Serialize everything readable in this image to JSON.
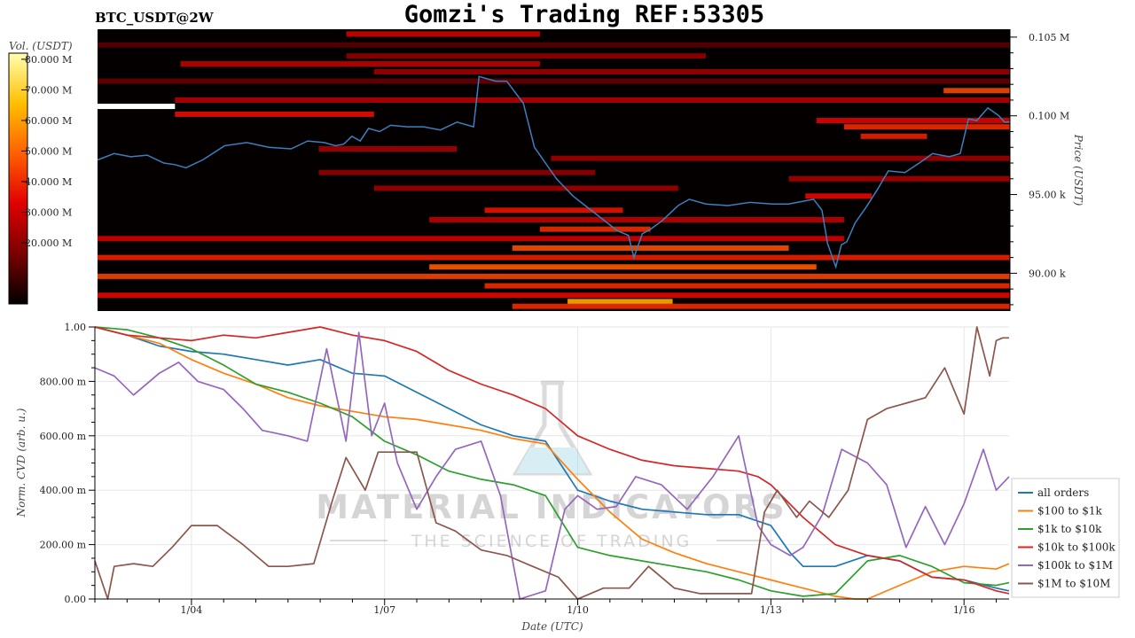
{
  "header": {
    "pair_label": "BTC_USDT@2W",
    "title": "Gomzi's Trading REF:53305"
  },
  "watermark": {
    "line1": "MATERIAL INDICATORS",
    "line2": "THE SCIENCE OF TRADING",
    "icon": "flask-icon"
  },
  "chart_data": [
    {
      "type": "heatmap",
      "colorbar": {
        "label": "Vol. (USDT)",
        "ticks": [
          "80.000 M",
          "70.000 M",
          "60.000 M",
          "50.000 M",
          "40.000 M",
          "30.000 M",
          "20.000 M"
        ],
        "tick_values": [
          80,
          70,
          60,
          50,
          40,
          30,
          20
        ],
        "range": [
          0,
          82
        ],
        "colors": [
          "#000000",
          "#7a0000",
          "#e00000",
          "#ff6000",
          "#ffc000",
          "#ffffb0"
        ]
      },
      "ylabel": "Price (USDT)",
      "yticks": [
        "0.105 M",
        "0.100 M",
        "95.00 k",
        "90.00 k"
      ],
      "ytick_values": [
        105000,
        100000,
        95000,
        90000
      ],
      "ylim": [
        87600,
        105500
      ],
      "x_range": [
        "01/02 12:00",
        "01/16 12:00"
      ],
      "line_color": "#3a7fc0",
      "price_series": {
        "t": [
          0,
          0.3,
          0.6,
          0.9,
          1.2,
          1.4,
          1.6,
          1.9,
          2.3,
          2.7,
          3.1,
          3.5,
          3.8,
          4.1,
          4.3,
          4.45,
          4.6,
          4.75,
          4.9,
          5.1,
          5.3,
          5.6,
          5.9,
          6.2,
          6.5,
          6.8,
          6.9,
          7.2,
          7.4,
          7.55,
          7.7,
          7.9,
          8.0,
          8.3,
          8.6,
          9.0,
          9.4,
          9.6,
          9.7,
          9.85,
          10.0,
          10.2,
          10.5,
          10.7,
          11.0,
          11.4,
          11.8,
          12.2,
          12.5,
          12.8,
          12.95,
          13.1,
          13.2,
          13.35,
          13.45,
          13.55,
          13.7,
          13.9,
          14.1,
          14.3,
          14.6,
          14.9,
          15.1,
          15.4,
          15.6,
          15.75,
          15.9,
          16.1,
          16.3,
          16.4,
          16.5
        ],
        "price": [
          97200,
          97600,
          97400,
          97500,
          97000,
          96900,
          96700,
          97200,
          98100,
          98300,
          98000,
          97900,
          98400,
          98300,
          98100,
          98200,
          98700,
          98400,
          99200,
          99000,
          99400,
          99300,
          99300,
          99100,
          99600,
          99300,
          102500,
          102200,
          102200,
          101500,
          100800,
          98000,
          97500,
          96000,
          94900,
          93800,
          92700,
          92400,
          91000,
          92500,
          92800,
          93300,
          94300,
          94700,
          94400,
          94300,
          94500,
          94400,
          94400,
          94600,
          94700,
          94000,
          91900,
          90400,
          91800,
          92000,
          93200,
          94200,
          95300,
          96500,
          96400,
          97100,
          97600,
          97400,
          97600,
          99800,
          99700,
          100500,
          100000,
          99600,
          99600
        ]
      },
      "heat_bands": [
        {
          "price": 104500,
          "t_start": 0,
          "t_end": 16.5,
          "volume": 12
        },
        {
          "price": 105200,
          "t_start": 4.5,
          "t_end": 8.0,
          "volume": 30
        },
        {
          "price": 103800,
          "t_start": 4.5,
          "t_end": 11.0,
          "volume": 20
        },
        {
          "price": 103300,
          "t_start": 1.5,
          "t_end": 8.0,
          "volume": 28
        },
        {
          "price": 102800,
          "t_start": 5.0,
          "t_end": 16.5,
          "volume": 22
        },
        {
          "price": 102200,
          "t_start": 0,
          "t_end": 16.5,
          "volume": 14
        },
        {
          "price": 101600,
          "t_start": 15.3,
          "t_end": 16.5,
          "volume": 45
        },
        {
          "price": 101000,
          "t_start": 1.4,
          "t_end": 16.5,
          "volume": 26
        },
        {
          "price": 100600,
          "t_start": 0,
          "t_end": 1.4,
          "volume": 82
        },
        {
          "price": 100100,
          "t_start": 1.4,
          "t_end": 5.0,
          "volume": 35
        },
        {
          "price": 99700,
          "t_start": 13.0,
          "t_end": 16.5,
          "volume": 33
        },
        {
          "price": 99300,
          "t_start": 13.5,
          "t_end": 16.5,
          "volume": 40
        },
        {
          "price": 98700,
          "t_start": 13.8,
          "t_end": 15.0,
          "volume": 38
        },
        {
          "price": 97900,
          "t_start": 4.0,
          "t_end": 6.5,
          "volume": 24
        },
        {
          "price": 97300,
          "t_start": 8.2,
          "t_end": 16.5,
          "volume": 22
        },
        {
          "price": 96400,
          "t_start": 4.0,
          "t_end": 9.0,
          "volume": 20
        },
        {
          "price": 96000,
          "t_start": 12.5,
          "t_end": 16.5,
          "volume": 24
        },
        {
          "price": 95400,
          "t_start": 5.0,
          "t_end": 10.5,
          "volume": 22
        },
        {
          "price": 94900,
          "t_start": 12.8,
          "t_end": 14.0,
          "volume": 34
        },
        {
          "price": 94000,
          "t_start": 7.0,
          "t_end": 9.5,
          "volume": 36
        },
        {
          "price": 93400,
          "t_start": 6.0,
          "t_end": 13.5,
          "volume": 28
        },
        {
          "price": 92800,
          "t_start": 8.0,
          "t_end": 10.0,
          "volume": 40
        },
        {
          "price": 92200,
          "t_start": 0,
          "t_end": 13.5,
          "volume": 30
        },
        {
          "price": 91600,
          "t_start": 7.5,
          "t_end": 12.5,
          "volume": 46
        },
        {
          "price": 91000,
          "t_start": 0,
          "t_end": 16.5,
          "volume": 38
        },
        {
          "price": 90400,
          "t_start": 6.0,
          "t_end": 13.0,
          "volume": 48
        },
        {
          "price": 89800,
          "t_start": 0,
          "t_end": 16.5,
          "volume": 44
        },
        {
          "price": 89200,
          "t_start": 7.0,
          "t_end": 16.5,
          "volume": 40
        },
        {
          "price": 88600,
          "t_start": 0,
          "t_end": 16.5,
          "volume": 34
        },
        {
          "price": 88200,
          "t_start": 8.5,
          "t_end": 10.4,
          "volume": 62
        },
        {
          "price": 87900,
          "t_start": 7.5,
          "t_end": 16.5,
          "volume": 40
        }
      ]
    },
    {
      "type": "line",
      "xlabel": "Date (UTC)",
      "ylabel": "Norm. CVD (arb. u.)",
      "xticks": [
        "1/04",
        "1/07",
        "1/10",
        "1/13",
        "1/16"
      ],
      "xtick_values": [
        1.5,
        4.5,
        7.5,
        10.5,
        13.5
      ],
      "xlim": [
        0,
        14.2
      ],
      "yticks": [
        "0.00",
        "200.00 m",
        "400.00 m",
        "600.00 m",
        "800.00 m",
        "1.00"
      ],
      "ytick_values": [
        0,
        0.2,
        0.4,
        0.6,
        0.8,
        1.0
      ],
      "ylim": [
        0,
        1.0
      ],
      "grid": true,
      "legend_position": "right",
      "series": [
        {
          "name": "all orders",
          "color": "#1f77b4",
          "x": [
            0,
            0.5,
            1.0,
            1.5,
            2.0,
            2.5,
            3.0,
            3.5,
            4.0,
            4.5,
            5.0,
            5.5,
            6.0,
            6.5,
            7.0,
            7.5,
            8.0,
            8.5,
            9.0,
            9.5,
            10.0,
            10.5,
            10.8,
            11.0,
            11.5,
            12.0,
            12.5,
            13.0,
            13.5,
            14.0,
            14.2
          ],
          "y": [
            1.0,
            0.97,
            0.93,
            0.91,
            0.9,
            0.88,
            0.86,
            0.88,
            0.83,
            0.82,
            0.76,
            0.7,
            0.64,
            0.6,
            0.58,
            0.4,
            0.36,
            0.33,
            0.32,
            0.31,
            0.31,
            0.27,
            0.17,
            0.12,
            0.12,
            0.16,
            0.14,
            0.08,
            0.07,
            0.04,
            0.03
          ]
        },
        {
          "name": "$100 to $1k",
          "color": "#ff7f0e",
          "x": [
            0,
            0.5,
            1.0,
            1.5,
            2.0,
            2.5,
            3.0,
            3.5,
            4.0,
            4.5,
            5.0,
            5.5,
            6.0,
            6.5,
            7.0,
            7.5,
            8.0,
            8.5,
            9.0,
            9.5,
            10.0,
            10.5,
            11.0,
            11.5,
            11.8,
            12.0,
            12.5,
            13.0,
            13.5,
            14.0,
            14.2
          ],
          "y": [
            1.0,
            0.97,
            0.94,
            0.88,
            0.83,
            0.79,
            0.74,
            0.71,
            0.69,
            0.67,
            0.66,
            0.64,
            0.62,
            0.59,
            0.57,
            0.44,
            0.32,
            0.22,
            0.17,
            0.13,
            0.1,
            0.07,
            0.04,
            0.01,
            0.0,
            0.0,
            0.05,
            0.1,
            0.12,
            0.11,
            0.13
          ]
        },
        {
          "name": "$1k to $10k",
          "color": "#2ca02c",
          "x": [
            0,
            0.5,
            1.0,
            1.5,
            2.0,
            2.5,
            3.0,
            3.5,
            4.0,
            4.5,
            5.0,
            5.5,
            6.0,
            6.5,
            7.0,
            7.5,
            8.0,
            8.5,
            9.0,
            9.5,
            10.0,
            10.5,
            11.0,
            11.5,
            12.0,
            12.5,
            13.0,
            13.5,
            14.0,
            14.2
          ],
          "y": [
            1.0,
            0.99,
            0.96,
            0.92,
            0.86,
            0.79,
            0.76,
            0.72,
            0.67,
            0.58,
            0.53,
            0.47,
            0.44,
            0.42,
            0.38,
            0.19,
            0.16,
            0.14,
            0.12,
            0.1,
            0.07,
            0.03,
            0.01,
            0.02,
            0.14,
            0.16,
            0.12,
            0.06,
            0.05,
            0.06
          ]
        },
        {
          "name": "$10k to $100k",
          "color": "#d62728",
          "x": [
            0,
            0.5,
            1.0,
            1.5,
            2.0,
            2.5,
            3.0,
            3.5,
            4.0,
            4.5,
            5.0,
            5.5,
            6.0,
            6.5,
            7.0,
            7.5,
            8.0,
            8.5,
            9.0,
            9.5,
            10.0,
            10.3,
            10.5,
            11.0,
            11.5,
            12.0,
            12.5,
            13.0,
            13.5,
            14.0,
            14.2
          ],
          "y": [
            1.0,
            0.97,
            0.96,
            0.95,
            0.97,
            0.96,
            0.98,
            1.0,
            0.97,
            0.95,
            0.91,
            0.84,
            0.79,
            0.75,
            0.7,
            0.6,
            0.55,
            0.51,
            0.49,
            0.48,
            0.47,
            0.45,
            0.42,
            0.3,
            0.2,
            0.16,
            0.14,
            0.08,
            0.07,
            0.03,
            0.02
          ]
        },
        {
          "name": "$100k to $1M",
          "color": "#9467bd",
          "x": [
            0,
            0.3,
            0.6,
            1.0,
            1.3,
            1.6,
            2.0,
            2.3,
            2.6,
            3.0,
            3.3,
            3.6,
            3.9,
            4.1,
            4.3,
            4.5,
            4.7,
            5.0,
            5.3,
            5.6,
            6.0,
            6.3,
            6.6,
            7.0,
            7.3,
            7.5,
            7.8,
            8.1,
            8.4,
            8.8,
            9.2,
            9.6,
            10.0,
            10.3,
            10.5,
            10.8,
            11.0,
            11.3,
            11.6,
            12.0,
            12.3,
            12.6,
            12.9,
            13.2,
            13.5,
            13.8,
            14.0,
            14.2
          ],
          "y": [
            0.85,
            0.82,
            0.75,
            0.83,
            0.87,
            0.8,
            0.77,
            0.7,
            0.62,
            0.6,
            0.58,
            0.92,
            0.58,
            0.98,
            0.6,
            0.72,
            0.5,
            0.33,
            0.45,
            0.55,
            0.58,
            0.38,
            0.0,
            0.03,
            0.33,
            0.38,
            0.33,
            0.34,
            0.45,
            0.42,
            0.33,
            0.45,
            0.6,
            0.27,
            0.2,
            0.16,
            0.19,
            0.31,
            0.55,
            0.5,
            0.42,
            0.19,
            0.34,
            0.2,
            0.35,
            0.55,
            0.4,
            0.45
          ]
        },
        {
          "name": "$1M to $10M",
          "color": "#8c564b",
          "x": [
            0,
            0.2,
            0.3,
            0.6,
            0.9,
            1.2,
            1.5,
            1.9,
            2.3,
            2.7,
            3.0,
            3.4,
            3.7,
            3.9,
            4.2,
            4.4,
            4.7,
            5.0,
            5.3,
            5.6,
            6.0,
            6.4,
            6.8,
            7.2,
            7.5,
            7.9,
            8.3,
            8.6,
            9.0,
            9.4,
            9.8,
            10.2,
            10.4,
            10.6,
            10.9,
            11.1,
            11.4,
            11.7,
            12.0,
            12.3,
            12.6,
            12.9,
            13.2,
            13.5,
            13.7,
            13.9,
            14.0,
            14.1,
            14.2
          ],
          "y": [
            0.14,
            0.0,
            0.12,
            0.13,
            0.12,
            0.19,
            0.27,
            0.27,
            0.2,
            0.12,
            0.12,
            0.13,
            0.37,
            0.52,
            0.4,
            0.54,
            0.54,
            0.54,
            0.28,
            0.25,
            0.18,
            0.16,
            0.12,
            0.08,
            0.0,
            0.04,
            0.04,
            0.12,
            0.04,
            0.02,
            0.02,
            0.02,
            0.32,
            0.4,
            0.3,
            0.36,
            0.3,
            0.4,
            0.66,
            0.7,
            0.72,
            0.74,
            0.85,
            0.68,
            1.0,
            0.82,
            0.95,
            0.96,
            0.96
          ]
        }
      ]
    }
  ]
}
